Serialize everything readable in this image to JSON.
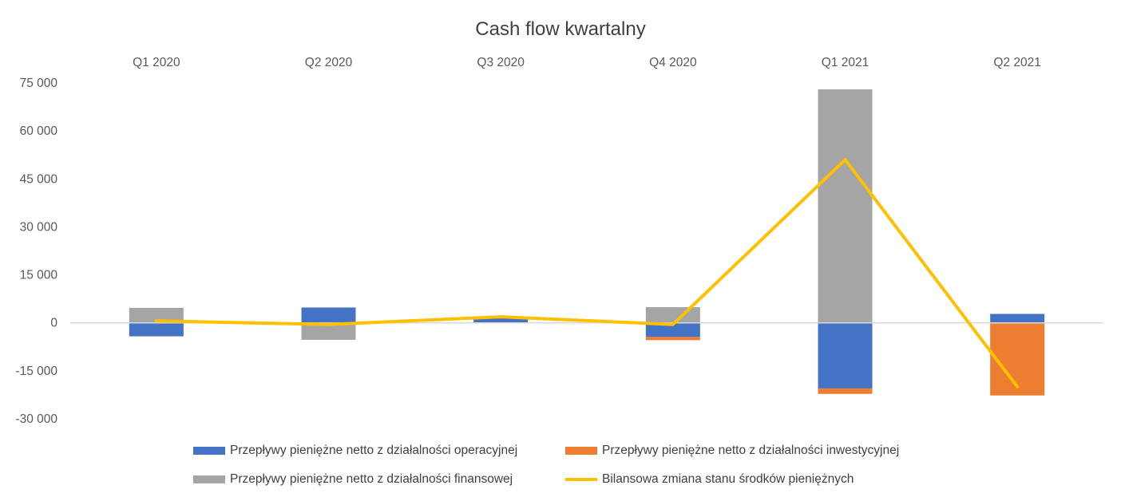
{
  "chart_data": {
    "type": "bar",
    "stacked": true,
    "title": "Cash flow kwartalny",
    "categories": [
      "Q1 2020",
      "Q2 2020",
      "Q3 2020",
      "Q4 2020",
      "Q1 2021",
      "Q2 2021"
    ],
    "y_ticks": [
      "75 000",
      "60 000",
      "45 000",
      "30 000",
      "15 000",
      "0",
      "-15 000",
      "-30 000"
    ],
    "ylim": [
      -30000,
      75000
    ],
    "category_labels_position": "top",
    "grid": false,
    "legend_position": "bottom",
    "series": [
      {
        "name": "Przepływy pieniężne netto z działalności operacyjnej",
        "type": "bar",
        "color": "#4472C4",
        "values": [
          -4200,
          4800,
          1500,
          -4400,
          -20500,
          2800
        ]
      },
      {
        "name": "Przepływy pieniężne netto z działalności inwestycyjnej",
        "type": "bar",
        "color": "#ED7D31",
        "values": [
          0,
          0,
          0,
          -1000,
          -1700,
          -22700
        ]
      },
      {
        "name": "Przepływy pieniężne netto z działalności finansowej",
        "type": "bar",
        "color": "#A5A5A5",
        "values": [
          4700,
          -5300,
          500,
          4900,
          73000,
          0
        ]
      },
      {
        "name": "Bilansowa zmiana stanu środków pieniężnych",
        "type": "line",
        "color": "#FFC000",
        "values": [
          600,
          -500,
          1900,
          -500,
          51000,
          -20000
        ]
      }
    ]
  }
}
